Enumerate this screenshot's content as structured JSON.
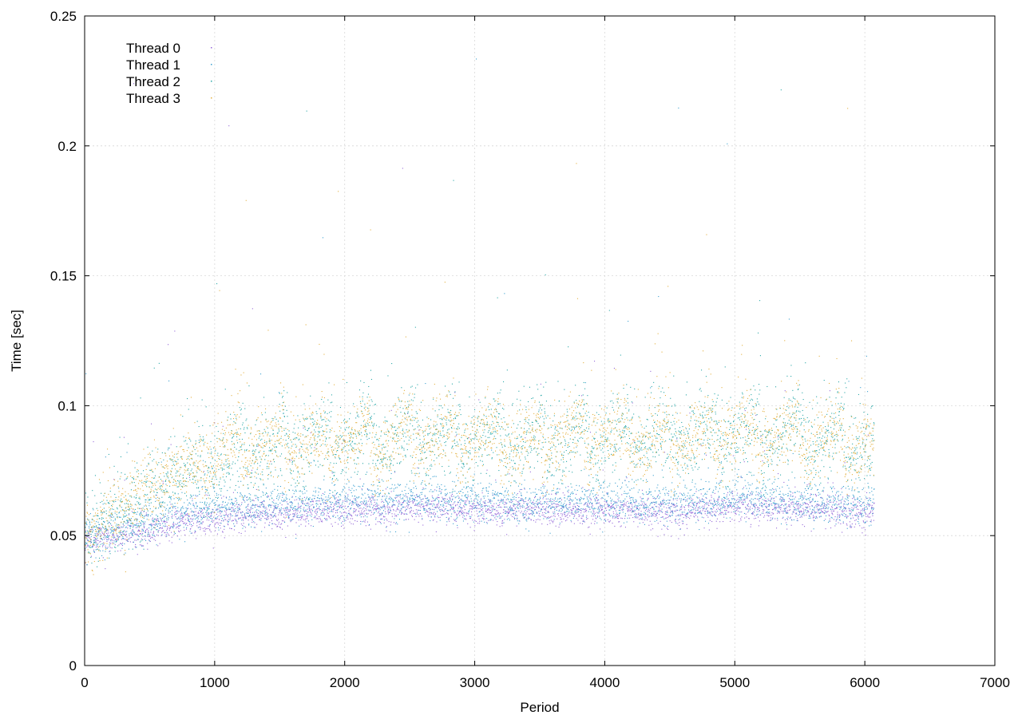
{
  "chart_data": {
    "type": "scatter",
    "title": "",
    "xlabel": "Period",
    "ylabel": "Time [sec]",
    "xlim": [
      0,
      7000
    ],
    "ylim": [
      0,
      0.25
    ],
    "xticks": [
      "0",
      "1000",
      "2000",
      "3000",
      "4000",
      "5000",
      "6000",
      "7000"
    ],
    "yticks": [
      "0",
      "0.05",
      "0.1",
      "0.15",
      "0.2",
      "0.25"
    ],
    "grid": true,
    "legend_position": "top-left",
    "n_points_per_series": 6070,
    "series": [
      {
        "name": "Thread 0",
        "color": "#9467d8",
        "description": "dense band starting ~0.05 rising to ~0.06",
        "trend": [
          [
            0,
            0.048
          ],
          [
            200,
            0.05
          ],
          [
            500,
            0.052
          ],
          [
            800,
            0.056
          ],
          [
            1200,
            0.058
          ],
          [
            1600,
            0.059
          ],
          [
            2000,
            0.06
          ],
          [
            2500,
            0.061
          ],
          [
            3000,
            0.06
          ],
          [
            3500,
            0.06
          ],
          [
            4000,
            0.06
          ],
          [
            4500,
            0.059
          ],
          [
            5000,
            0.061
          ],
          [
            5500,
            0.06
          ],
          [
            6070,
            0.059
          ]
        ],
        "spread": 0.003
      },
      {
        "name": "Thread 1",
        "color": "#3aa0d0",
        "description": "band ~0.055-0.065 with scattered upper points",
        "trend": [
          [
            0,
            0.05
          ],
          [
            200,
            0.052
          ],
          [
            500,
            0.056
          ],
          [
            800,
            0.06
          ],
          [
            1200,
            0.061
          ],
          [
            1600,
            0.062
          ],
          [
            2000,
            0.063
          ],
          [
            2500,
            0.064
          ],
          [
            3000,
            0.063
          ],
          [
            3500,
            0.063
          ],
          [
            4000,
            0.063
          ],
          [
            4500,
            0.062
          ],
          [
            5000,
            0.065
          ],
          [
            5500,
            0.063
          ],
          [
            6070,
            0.062
          ]
        ],
        "spread": 0.004
      },
      {
        "name": "Thread 2",
        "color": "#2aa8a8",
        "description": "sawtooth band ~0.08-0.095",
        "trend": [
          [
            0,
            0.05
          ],
          [
            200,
            0.058
          ],
          [
            500,
            0.066
          ],
          [
            800,
            0.075
          ],
          [
            1200,
            0.082
          ],
          [
            1600,
            0.084
          ],
          [
            2000,
            0.087
          ],
          [
            2500,
            0.088
          ],
          [
            3000,
            0.087
          ],
          [
            3500,
            0.087
          ],
          [
            4000,
            0.088
          ],
          [
            4500,
            0.087
          ],
          [
            5000,
            0.089
          ],
          [
            5500,
            0.088
          ],
          [
            6070,
            0.085
          ]
        ],
        "spread": 0.008
      },
      {
        "name": "Thread 3",
        "color": "#e3b040",
        "description": "sawtooth band ~0.08-0.095 overlapping Thread 2",
        "trend": [
          [
            0,
            0.05
          ],
          [
            200,
            0.058
          ],
          [
            500,
            0.068
          ],
          [
            800,
            0.077
          ],
          [
            1200,
            0.084
          ],
          [
            1600,
            0.085
          ],
          [
            2000,
            0.087
          ],
          [
            2500,
            0.088
          ],
          [
            3000,
            0.087
          ],
          [
            3500,
            0.087
          ],
          [
            4000,
            0.088
          ],
          [
            4500,
            0.087
          ],
          [
            5000,
            0.09
          ],
          [
            5500,
            0.088
          ],
          [
            6070,
            0.084
          ]
        ],
        "spread": 0.007
      }
    ]
  }
}
